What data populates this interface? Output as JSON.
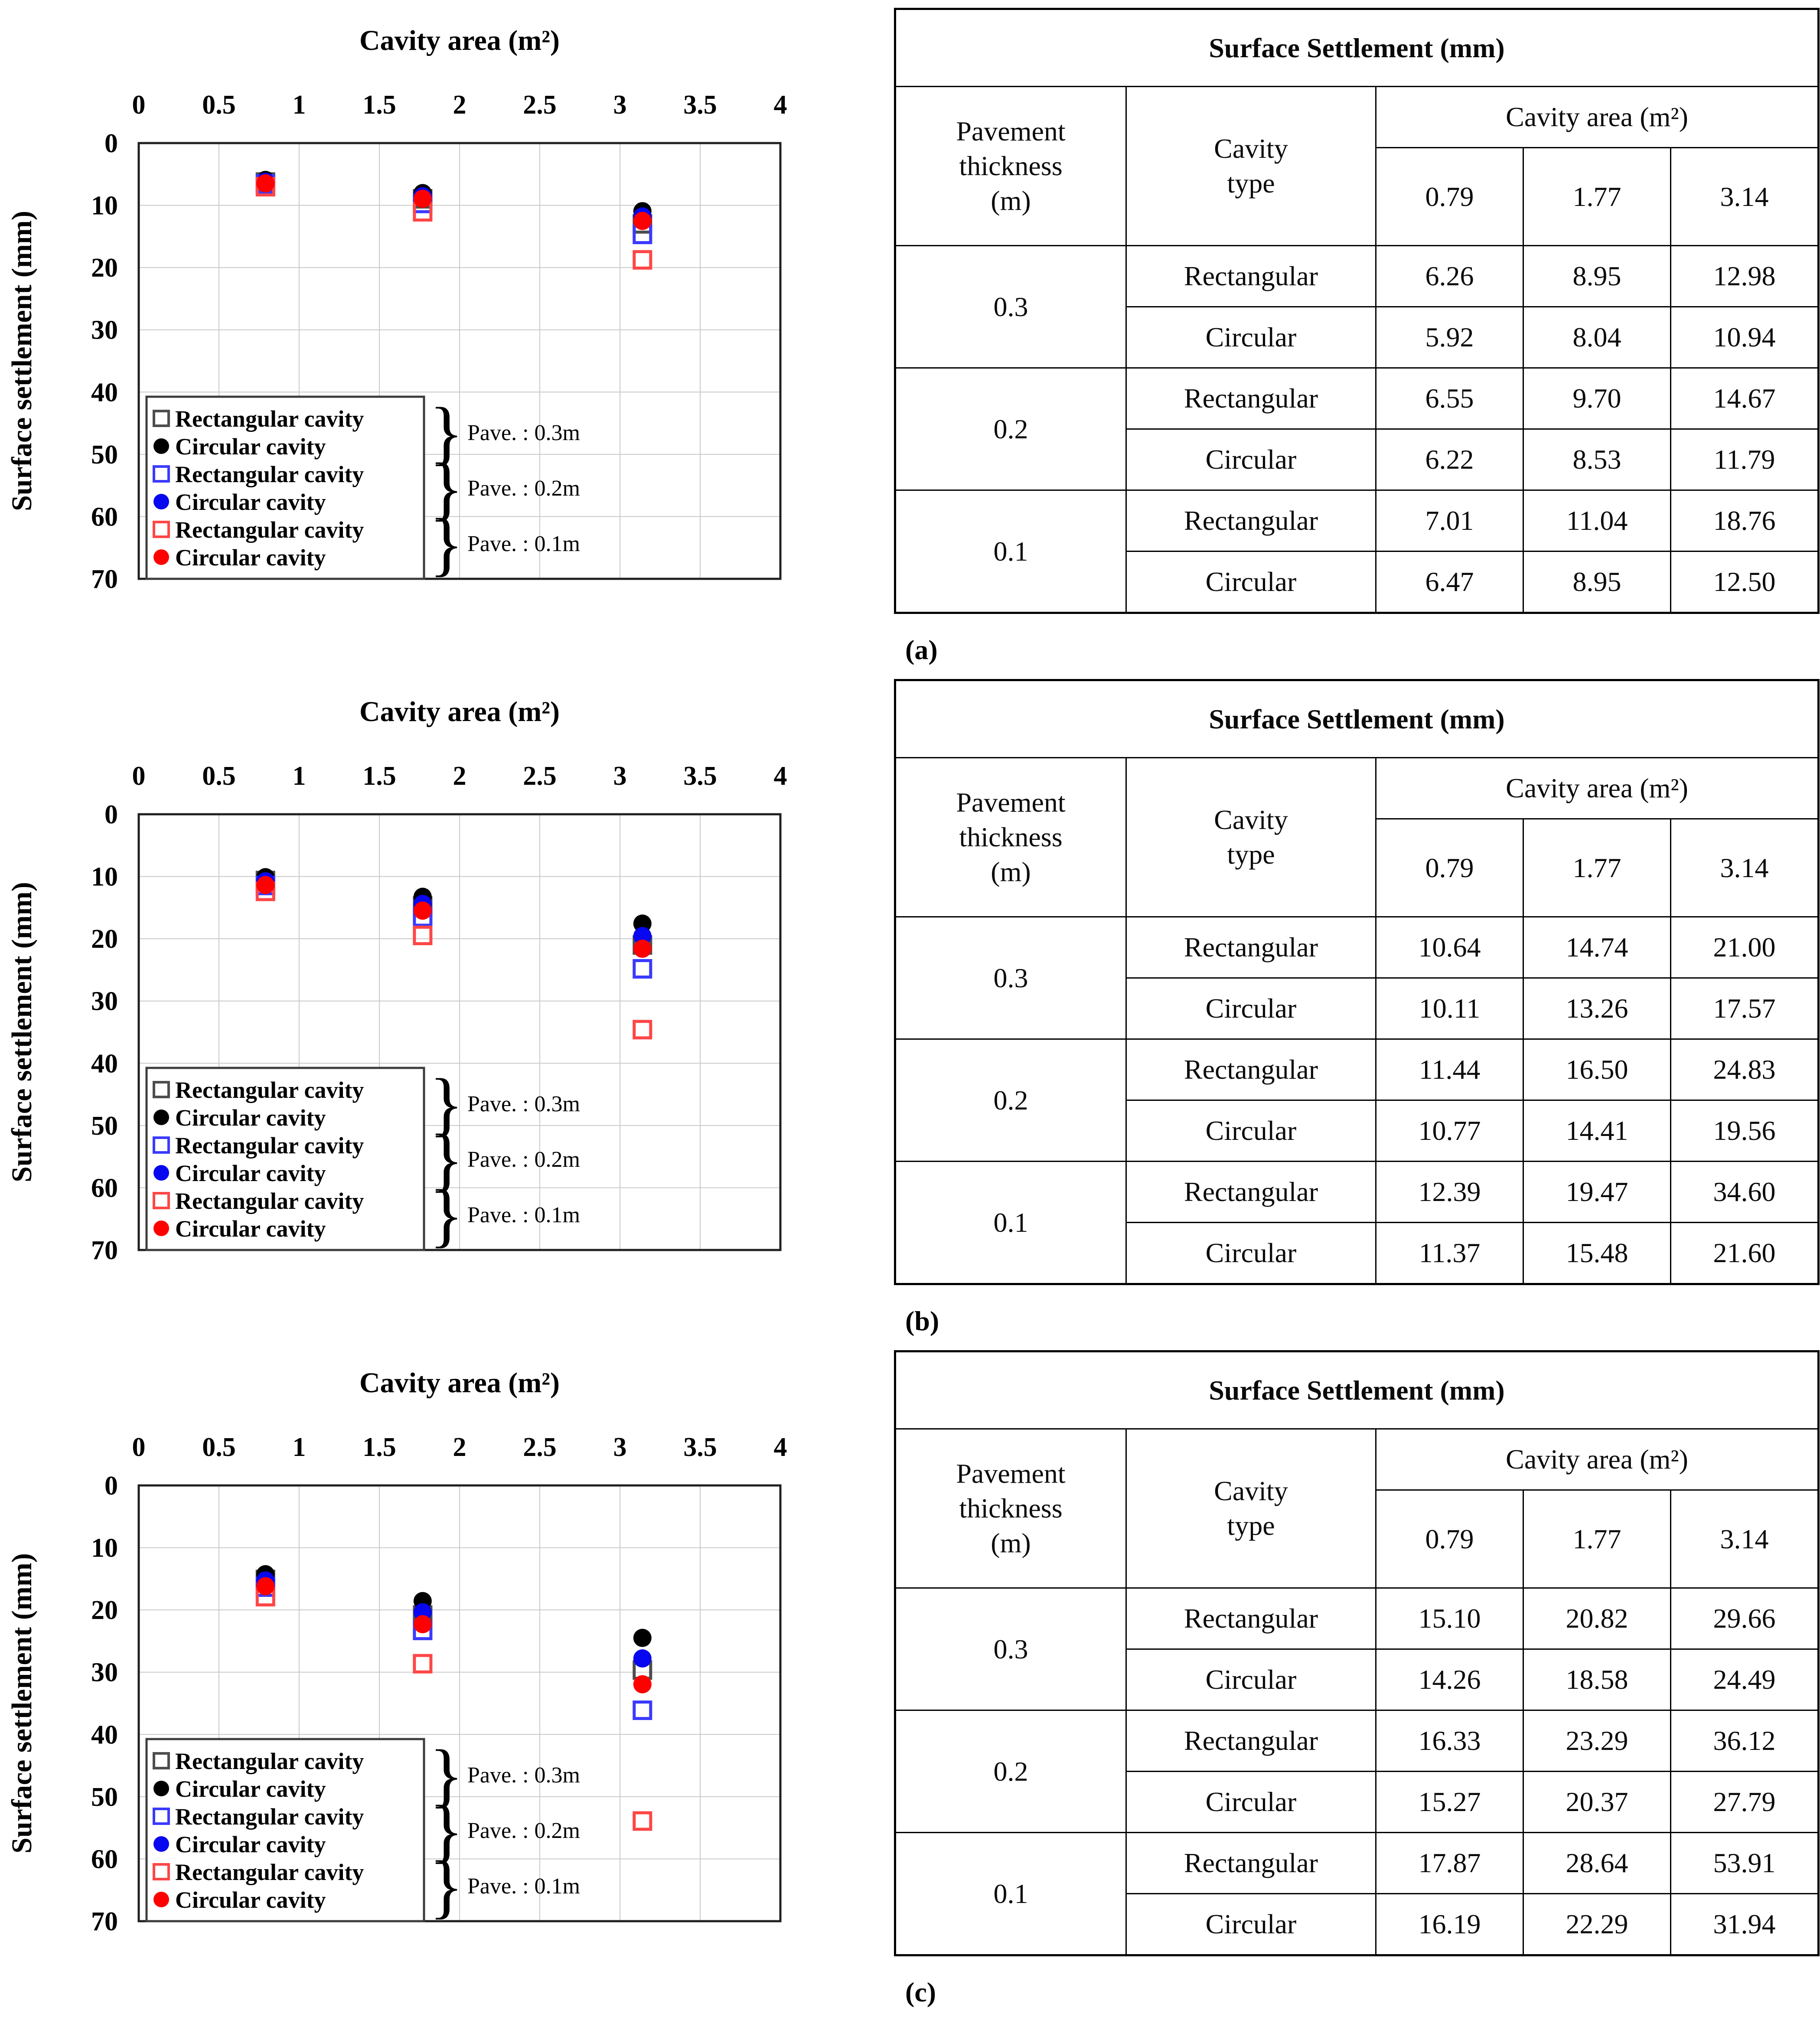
{
  "colors": {
    "black": "#000000",
    "black_open": "#4d4d4d",
    "blue": "#0707f0",
    "blue_open": "#3a3aff",
    "red": "#ff0000",
    "red_open": "#ff4646",
    "grid": "#c9c9c9",
    "border": "#1f1f1f",
    "legend_border": "#3c3c3c"
  },
  "chart_common": {
    "x_title": "Cavity area (m²)",
    "y_title": "Surface settlement (mm)",
    "x_ticks": [
      "0",
      "0.5",
      "1",
      "1.5",
      "2",
      "2.5",
      "3",
      "3.5",
      "4"
    ],
    "y_ticks": [
      "0",
      "10",
      "20",
      "30",
      "40",
      "50",
      "60",
      "70"
    ],
    "x_range": [
      0,
      4
    ],
    "y_range": [
      0,
      70
    ],
    "y_axis_reversed": true,
    "grid": true,
    "legend_position": "lower-left",
    "legend": [
      {
        "marker": "square-open",
        "color_key": "black_open",
        "label": "Rectangular cavity"
      },
      {
        "marker": "circle-filled",
        "color_key": "black",
        "label": "Circular cavity"
      },
      {
        "marker": "square-open",
        "color_key": "blue_open",
        "label": "Rectangular cavity"
      },
      {
        "marker": "circle-filled",
        "color_key": "blue",
        "label": "Circular cavity"
      },
      {
        "marker": "square-open",
        "color_key": "red_open",
        "label": "Rectangular cavity"
      },
      {
        "marker": "circle-filled",
        "color_key": "red",
        "label": "Circular cavity"
      }
    ],
    "pave_labels": [
      "Pave. : 0.3m",
      "Pave. : 0.2m",
      "Pave. : 0.1m"
    ]
  },
  "chart_data": [
    {
      "type": "scatter",
      "panel": "a",
      "title": "",
      "xlabel": "Cavity area (m²)",
      "ylabel": "Surface settlement (mm)",
      "xlim": [
        0,
        4
      ],
      "ylim": [
        0,
        70
      ],
      "y_inverted": true,
      "x": [
        0.79,
        1.77,
        3.14
      ],
      "series": [
        {
          "name": "Rectangular cavity (Pave. : 0.3m)",
          "marker": "square-open",
          "color": "#4d4d4d",
          "values": [
            6.26,
            8.95,
            12.98
          ]
        },
        {
          "name": "Circular cavity (Pave. : 0.3m)",
          "marker": "circle-filled",
          "color": "#000000",
          "values": [
            5.92,
            8.04,
            10.94
          ]
        },
        {
          "name": "Rectangular cavity (Pave. : 0.2m)",
          "marker": "square-open",
          "color": "#3a3aff",
          "values": [
            6.55,
            9.7,
            14.67
          ]
        },
        {
          "name": "Circular cavity (Pave. : 0.2m)",
          "marker": "circle-filled",
          "color": "#0707f0",
          "values": [
            6.22,
            8.53,
            11.79
          ]
        },
        {
          "name": "Rectangular cavity (Pave. : 0.1m)",
          "marker": "square-open",
          "color": "#ff4646",
          "values": [
            7.01,
            11.04,
            18.76
          ]
        },
        {
          "name": "Circular cavity (Pave. : 0.1m)",
          "marker": "circle-filled",
          "color": "#ff0000",
          "values": [
            6.47,
            8.95,
            12.5
          ]
        }
      ]
    },
    {
      "type": "scatter",
      "panel": "b",
      "title": "",
      "xlabel": "Cavity area (m²)",
      "ylabel": "Surface settlement (mm)",
      "xlim": [
        0,
        4
      ],
      "ylim": [
        0,
        70
      ],
      "y_inverted": true,
      "x": [
        0.79,
        1.77,
        3.14
      ],
      "series": [
        {
          "name": "Rectangular cavity (Pave. : 0.3m)",
          "marker": "square-open",
          "color": "#4d4d4d",
          "values": [
            10.64,
            14.74,
            21.0
          ]
        },
        {
          "name": "Circular cavity (Pave. : 0.3m)",
          "marker": "circle-filled",
          "color": "#000000",
          "values": [
            10.11,
            13.26,
            17.57
          ]
        },
        {
          "name": "Rectangular cavity (Pave. : 0.2m)",
          "marker": "square-open",
          "color": "#3a3aff",
          "values": [
            11.44,
            16.5,
            24.83
          ]
        },
        {
          "name": "Circular cavity (Pave. : 0.2m)",
          "marker": "circle-filled",
          "color": "#0707f0",
          "values": [
            10.77,
            14.41,
            19.56
          ]
        },
        {
          "name": "Rectangular cavity (Pave. : 0.1m)",
          "marker": "square-open",
          "color": "#ff4646",
          "values": [
            12.39,
            19.47,
            34.6
          ]
        },
        {
          "name": "Circular cavity (Pave. : 0.1m)",
          "marker": "circle-filled",
          "color": "#ff0000",
          "values": [
            11.37,
            15.48,
            21.6
          ]
        }
      ]
    },
    {
      "type": "scatter",
      "panel": "c",
      "title": "",
      "xlabel": "Cavity area (m²)",
      "ylabel": "Surface settlement (mm)",
      "xlim": [
        0,
        4
      ],
      "ylim": [
        0,
        70
      ],
      "y_inverted": true,
      "x": [
        0.79,
        1.77,
        3.14
      ],
      "series": [
        {
          "name": "Rectangular cavity (Pave. : 0.3m)",
          "marker": "square-open",
          "color": "#4d4d4d",
          "values": [
            15.1,
            20.82,
            29.66
          ]
        },
        {
          "name": "Circular cavity (Pave. : 0.3m)",
          "marker": "circle-filled",
          "color": "#000000",
          "values": [
            14.26,
            18.58,
            24.49
          ]
        },
        {
          "name": "Rectangular cavity (Pave. : 0.2m)",
          "marker": "square-open",
          "color": "#3a3aff",
          "values": [
            16.33,
            23.29,
            36.12
          ]
        },
        {
          "name": "Circular cavity (Pave. : 0.2m)",
          "marker": "circle-filled",
          "color": "#0707f0",
          "values": [
            15.27,
            20.37,
            27.79
          ]
        },
        {
          "name": "Rectangular cavity (Pave. : 0.1m)",
          "marker": "square-open",
          "color": "#ff4646",
          "values": [
            17.87,
            28.64,
            53.91
          ]
        },
        {
          "name": "Circular cavity (Pave. : 0.1m)",
          "marker": "circle-filled",
          "color": "#ff0000",
          "values": [
            16.19,
            22.29,
            31.94
          ]
        }
      ]
    }
  ],
  "tables": [
    {
      "title": "Surface Settlement (mm)",
      "pavement_header": "Pavement\nthickness\n(m)",
      "cavity_type_header": "Cavity\ntype",
      "cavity_area_header": "Cavity area (m²)",
      "area_values": [
        "0.79",
        "1.77",
        "3.14"
      ],
      "groups": [
        {
          "thickness": "0.3",
          "rows": [
            [
              "Rectangular",
              "6.26",
              "8.95",
              "12.98"
            ],
            [
              "Circular",
              "5.92",
              "8.04",
              "10.94"
            ]
          ]
        },
        {
          "thickness": "0.2",
          "rows": [
            [
              "Rectangular",
              "6.55",
              "9.70",
              "14.67"
            ],
            [
              "Circular",
              "6.22",
              "8.53",
              "11.79"
            ]
          ]
        },
        {
          "thickness": "0.1",
          "rows": [
            [
              "Rectangular",
              "7.01",
              "11.04",
              "18.76"
            ],
            [
              "Circular",
              "6.47",
              "8.95",
              "12.50"
            ]
          ]
        }
      ],
      "caption": "(a)"
    },
    {
      "title": "Surface Settlement (mm)",
      "pavement_header": "Pavement\nthickness\n(m)",
      "cavity_type_header": "Cavity\ntype",
      "cavity_area_header": "Cavity area (m²)",
      "area_values": [
        "0.79",
        "1.77",
        "3.14"
      ],
      "groups": [
        {
          "thickness": "0.3",
          "rows": [
            [
              "Rectangular",
              "10.64",
              "14.74",
              "21.00"
            ],
            [
              "Circular",
              "10.11",
              "13.26",
              "17.57"
            ]
          ]
        },
        {
          "thickness": "0.2",
          "rows": [
            [
              "Rectangular",
              "11.44",
              "16.50",
              "24.83"
            ],
            [
              "Circular",
              "10.77",
              "14.41",
              "19.56"
            ]
          ]
        },
        {
          "thickness": "0.1",
          "rows": [
            [
              "Rectangular",
              "12.39",
              "19.47",
              "34.60"
            ],
            [
              "Circular",
              "11.37",
              "15.48",
              "21.60"
            ]
          ]
        }
      ],
      "caption": "(b)"
    },
    {
      "title": "Surface Settlement (mm)",
      "pavement_header": "Pavement\nthickness\n(m)",
      "cavity_type_header": "Cavity\ntype",
      "cavity_area_header": "Cavity area (m²)",
      "area_values": [
        "0.79",
        "1.77",
        "3.14"
      ],
      "groups": [
        {
          "thickness": "0.3",
          "rows": [
            [
              "Rectangular",
              "15.10",
              "20.82",
              "29.66"
            ],
            [
              "Circular",
              "14.26",
              "18.58",
              "24.49"
            ]
          ]
        },
        {
          "thickness": "0.2",
          "rows": [
            [
              "Rectangular",
              "16.33",
              "23.29",
              "36.12"
            ],
            [
              "Circular",
              "15.27",
              "20.37",
              "27.79"
            ]
          ]
        },
        {
          "thickness": "0.1",
          "rows": [
            [
              "Rectangular",
              "17.87",
              "28.64",
              "53.91"
            ],
            [
              "Circular",
              "16.19",
              "22.29",
              "31.94"
            ]
          ]
        }
      ],
      "caption": "(c)"
    }
  ]
}
